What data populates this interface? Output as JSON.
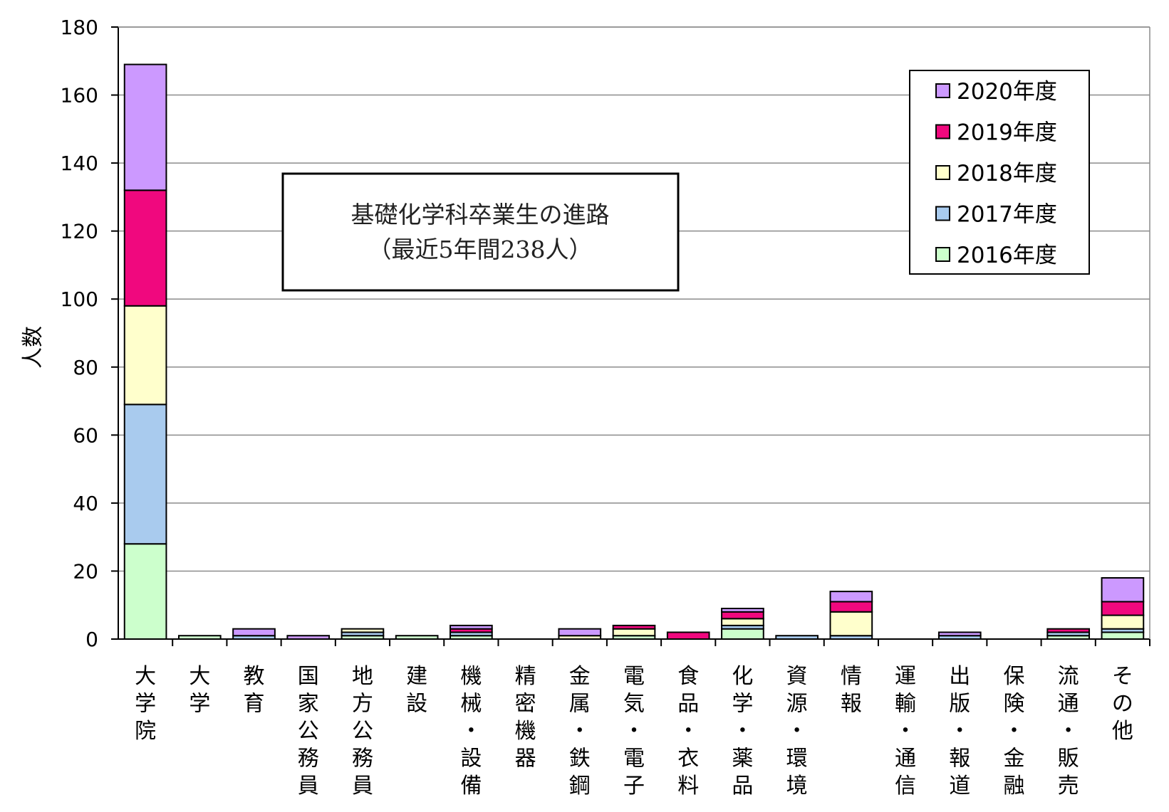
{
  "chart_data": {
    "type": "bar",
    "stacked": true,
    "title_lines": [
      "基礎化学科卒業生の進路",
      "（最近5年間238人）"
    ],
    "ylabel": "人数",
    "xlabel": "",
    "ylim": [
      0,
      180
    ],
    "yticks": [
      0,
      20,
      40,
      60,
      80,
      100,
      120,
      140,
      160,
      180
    ],
    "grid": true,
    "legend_position": "top-right",
    "categories": [
      "大学院",
      "大学",
      "教育",
      "国家公務員",
      "地方公務員",
      "建設",
      "機械・設備",
      "精密機器",
      "金属・鉄鋼",
      "電気・電子",
      "食品・衣料",
      "化学・薬品",
      "資源・環境",
      "情報",
      "運輸・通信",
      "出版・報道",
      "保険・金融",
      "流通・販売",
      "その他"
    ],
    "series": [
      {
        "name": "2016年度",
        "color": "#ccffcc",
        "values": [
          28,
          1,
          0,
          0,
          1,
          1,
          1,
          0,
          0,
          1,
          0,
          3,
          0,
          0,
          0,
          0,
          0,
          1,
          2
        ]
      },
      {
        "name": "2017年度",
        "color": "#a9cbee",
        "values": [
          41,
          0,
          1,
          0,
          1,
          0,
          1,
          0,
          0,
          0,
          0,
          1,
          1,
          1,
          0,
          1,
          0,
          1,
          1
        ]
      },
      {
        "name": "2018年度",
        "color": "#ffffcc",
        "values": [
          29,
          0,
          0,
          0,
          1,
          0,
          0,
          0,
          1,
          2,
          0,
          2,
          0,
          7,
          0,
          0,
          0,
          0,
          4
        ]
      },
      {
        "name": "2019年度",
        "color": "#f0087e",
        "values": [
          34,
          0,
          0,
          0,
          0,
          0,
          1,
          0,
          0,
          1,
          2,
          2,
          0,
          3,
          0,
          0,
          0,
          1,
          4
        ]
      },
      {
        "name": "2020年度",
        "color": "#cc99ff",
        "values": [
          37,
          0,
          2,
          1,
          0,
          0,
          1,
          0,
          2,
          0,
          0,
          1,
          0,
          3,
          0,
          1,
          0,
          0,
          7
        ]
      }
    ]
  }
}
